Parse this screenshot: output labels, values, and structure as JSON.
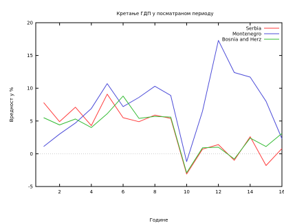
{
  "chart_data": {
    "type": "line",
    "title": "Кретање ГДП у посматраном периоду",
    "xlabel": "Године",
    "ylabel": "Вредност у %",
    "xlim": [
      0.5,
      16
    ],
    "ylim": [
      -5,
      20
    ],
    "xticks": [
      "2",
      "4",
      "6",
      "8",
      "10",
      "12",
      "14",
      "16"
    ],
    "xtick_values": [
      2,
      4,
      6,
      8,
      10,
      12,
      14,
      16
    ],
    "yticks": [
      "-5",
      "0",
      "5",
      "10",
      "15",
      "20"
    ],
    "ytick_values": [
      -5,
      0,
      5,
      10,
      15,
      20
    ],
    "zero_line": true,
    "legend_position": "top-right",
    "x": [
      1,
      2,
      3,
      4,
      5,
      6,
      7,
      8,
      9,
      10,
      11,
      12,
      13,
      14,
      15,
      16
    ],
    "series": [
      {
        "name": "Serbia",
        "color": "#ff3b3b",
        "values": [
          7.8,
          4.9,
          7.1,
          4.3,
          9.1,
          5.5,
          4.9,
          5.9,
          5.4,
          -3.1,
          0.7,
          1.4,
          -1.0,
          2.6,
          -1.8,
          0.8
        ]
      },
      {
        "name": "Montenegro",
        "color": "#4b4bd8",
        "values": [
          1.1,
          3.0,
          4.7,
          6.9,
          10.7,
          7.2,
          8.6,
          10.3,
          8.9,
          -1.2,
          6.5,
          17.3,
          12.4,
          11.7,
          8.0,
          2.3
        ]
      },
      {
        "name": "Bosnia and Herz",
        "color": "#33bb33",
        "values": [
          5.5,
          4.4,
          5.3,
          4.0,
          6.1,
          8.8,
          5.4,
          5.7,
          5.6,
          -2.9,
          0.9,
          1.0,
          -0.8,
          2.4,
          1.1,
          3.1
        ]
      }
    ]
  }
}
